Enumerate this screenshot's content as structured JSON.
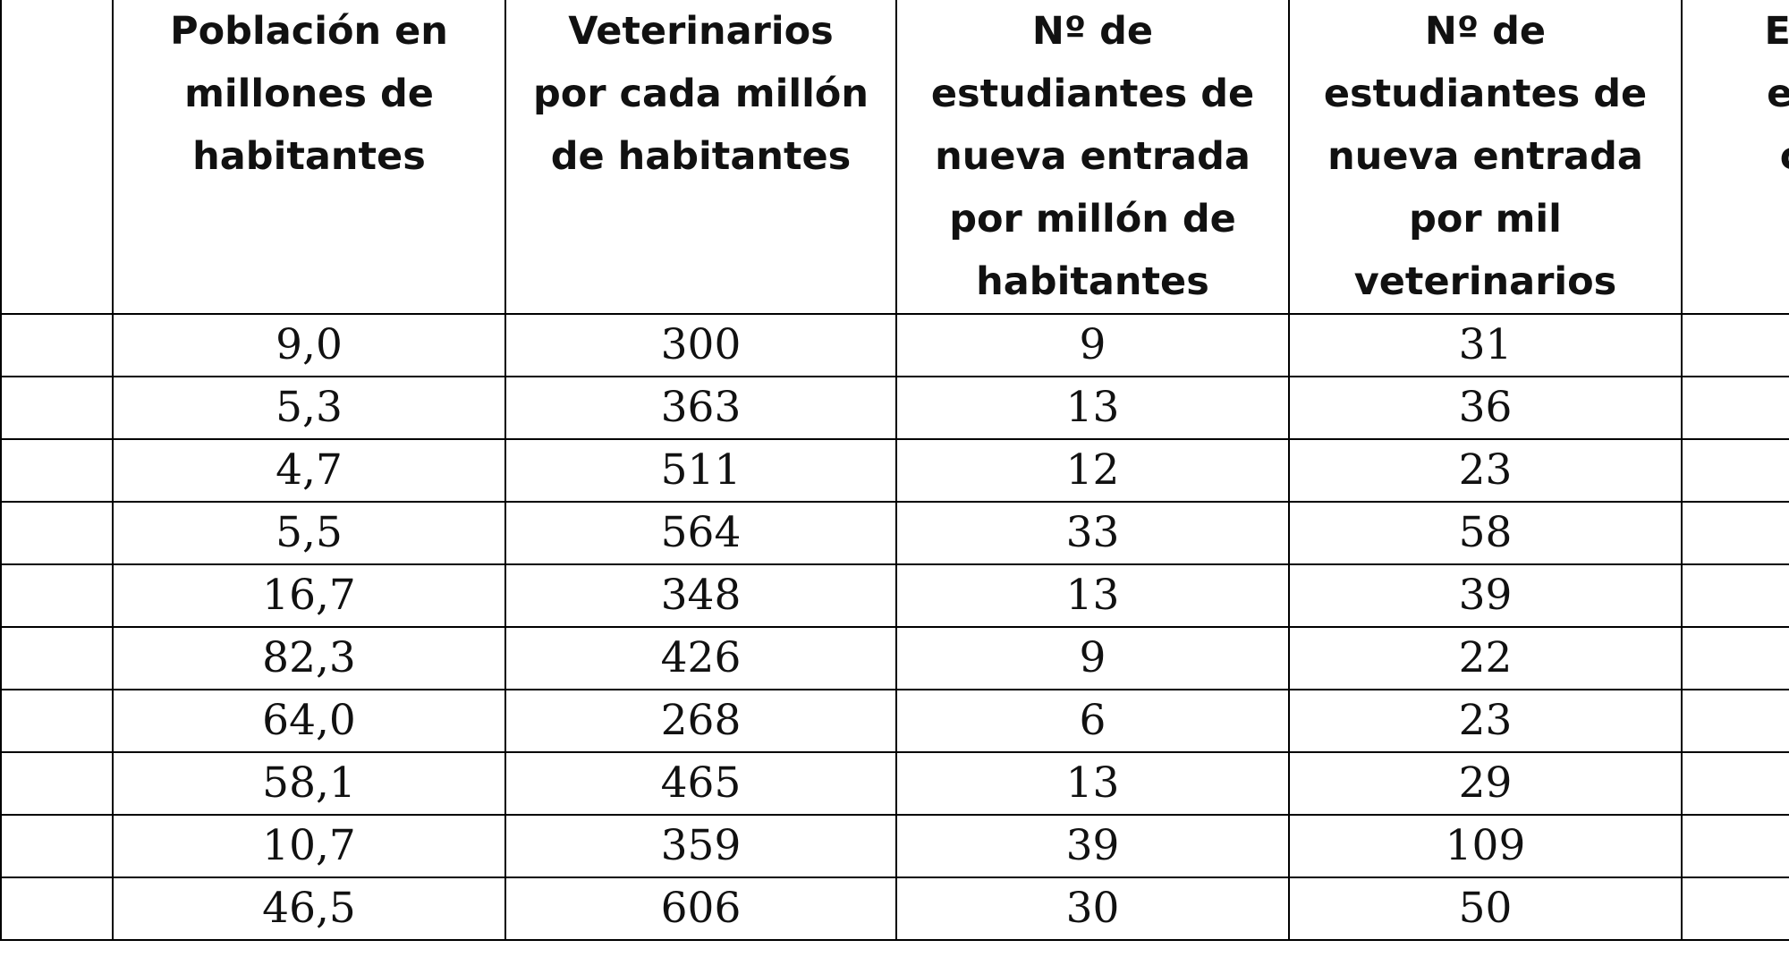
{
  "table": {
    "headers": [
      [],
      [
        "Población en",
        "millones de",
        "habitantes"
      ],
      [
        "Veterinarios",
        "por cada millón",
        "de habitantes"
      ],
      [
        "Nº de",
        "estudiantes de",
        "nueva entrada",
        "por millón de",
        "habitantes"
      ],
      [
        "Nº de",
        "estudiantes de",
        "nueva entrada",
        "por mil",
        "veterinarios"
      ],
      [
        "En",
        "es",
        "c"
      ]
    ],
    "rows": [
      [
        "",
        "9,0",
        "300",
        "9",
        "31",
        ""
      ],
      [
        "",
        "5,3",
        "363",
        "13",
        "36",
        ""
      ],
      [
        "",
        "4,7",
        "511",
        "12",
        "23",
        ""
      ],
      [
        "",
        "5,5",
        "564",
        "33",
        "58",
        ""
      ],
      [
        "",
        "16,7",
        "348",
        "13",
        "39",
        ""
      ],
      [
        "",
        "82,3",
        "426",
        "9",
        "22",
        ""
      ],
      [
        "",
        "64,0",
        "268",
        "6",
        "23",
        ""
      ],
      [
        "",
        "58,1",
        "465",
        "13",
        "29",
        ""
      ],
      [
        "",
        "10,7",
        "359",
        "39",
        "109",
        ""
      ],
      [
        "",
        "46,5",
        "606",
        "30",
        "50",
        ""
      ]
    ]
  }
}
